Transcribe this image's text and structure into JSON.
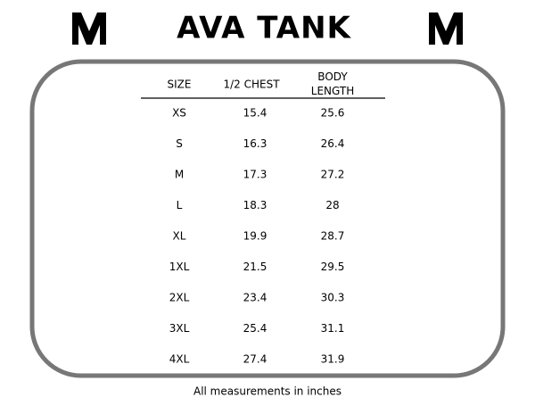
{
  "header": {
    "title": "AVA TANK"
  },
  "table": {
    "columns": [
      "SIZE",
      "1/2 CHEST",
      "BODY LENGTH"
    ],
    "rows": [
      [
        "XS",
        "15.4",
        "25.6"
      ],
      [
        "S",
        "16.3",
        "26.4"
      ],
      [
        "M",
        "17.3",
        "27.2"
      ],
      [
        "L",
        "18.3",
        "28"
      ],
      [
        "XL",
        "19.9",
        "28.7"
      ],
      [
        "1XL",
        "21.5",
        "29.5"
      ],
      [
        "2XL",
        "23.4",
        "30.3"
      ],
      [
        "3XL",
        "25.4",
        "31.1"
      ],
      [
        "4XL",
        "27.4",
        "31.9"
      ]
    ]
  },
  "footer": {
    "note": "All measurements in inches"
  }
}
